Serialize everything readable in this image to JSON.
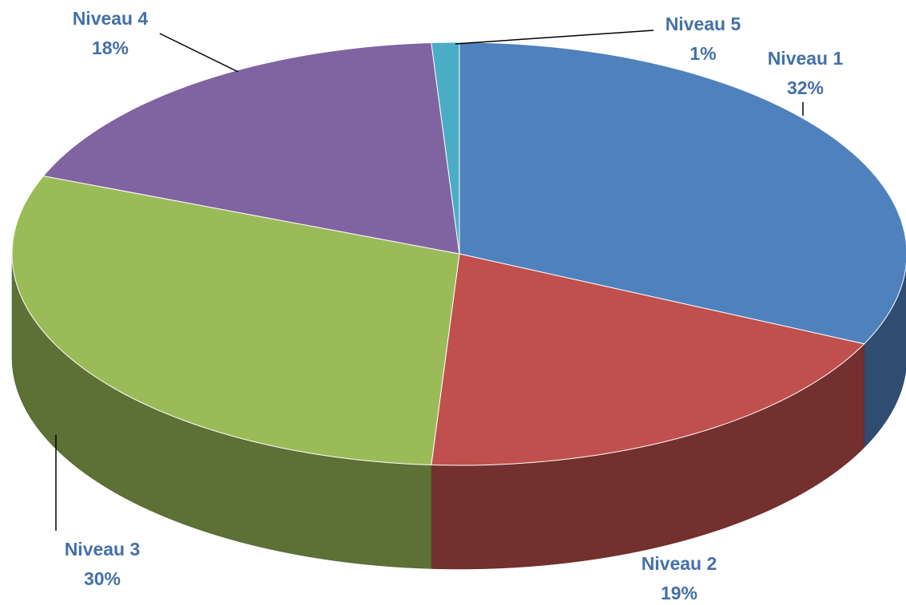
{
  "chart_data": {
    "type": "pie",
    "categories": [
      "Niveau 1",
      "Niveau 2",
      "Niveau 3",
      "Niveau 4",
      "Niveau 5"
    ],
    "values": [
      32,
      19,
      30,
      18,
      1
    ],
    "value_labels": [
      "32%",
      "19%",
      "30%",
      "18%",
      "1%"
    ],
    "colors": [
      "#4f81bd",
      "#c0504d",
      "#9bbb59",
      "#8064a2",
      "#4bacc6"
    ]
  }
}
